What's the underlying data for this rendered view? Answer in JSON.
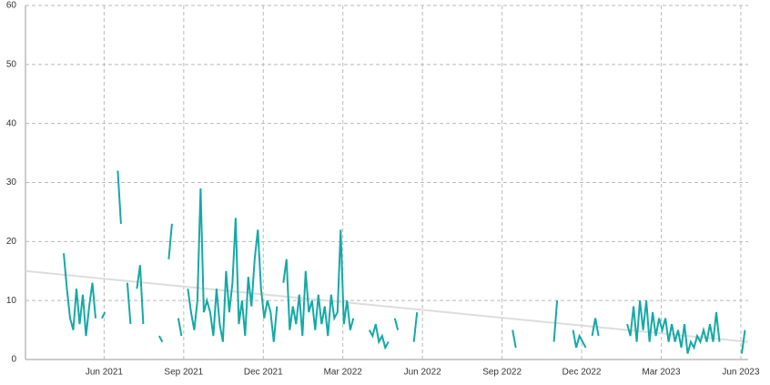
{
  "chart_data": {
    "type": "line",
    "xlim": [
      2021.17,
      2023.44
    ],
    "ylim": [
      0,
      60
    ],
    "yticks": [
      0,
      10,
      20,
      30,
      40,
      50,
      60
    ],
    "xticks": [
      {
        "value": 2021.417,
        "label": "Jun 2021"
      },
      {
        "value": 2021.667,
        "label": "Sep 2021"
      },
      {
        "value": 2021.917,
        "label": "Dec 2021"
      },
      {
        "value": 2022.167,
        "label": "Mar 2022"
      },
      {
        "value": 2022.417,
        "label": "Jun 2022"
      },
      {
        "value": 2022.667,
        "label": "Sep 2022"
      },
      {
        "value": 2022.917,
        "label": "Dec 2022"
      },
      {
        "value": 2023.167,
        "label": "Mar 2023"
      },
      {
        "value": 2023.417,
        "label": "Jun 2023"
      }
    ],
    "grid": true,
    "series": [
      {
        "color": "#dddddd",
        "x": [
          2021.17,
          2023.44
        ],
        "values": [
          15,
          3
        ]
      },
      {
        "color": "#14a9a6",
        "x": [
          2021.29,
          2021.3,
          2021.31,
          2021.32,
          2021.33,
          2021.34,
          2021.35,
          2021.36,
          2021.37,
          2021.38,
          2021.39,
          2021.4,
          2021.41,
          2021.42,
          2021.43,
          2021.46,
          2021.47,
          2021.48,
          2021.49,
          2021.5,
          2021.51,
          2021.52,
          2021.53,
          2021.54,
          2021.55,
          2021.59,
          2021.6,
          2021.61,
          2021.62,
          2021.63,
          2021.64,
          2021.65,
          2021.66,
          2021.67,
          2021.68,
          2021.69,
          2021.7,
          2021.71,
          2021.72,
          2021.73,
          2021.74,
          2021.75,
          2021.76,
          2021.77,
          2021.78,
          2021.79,
          2021.8,
          2021.81,
          2021.82,
          2021.83,
          2021.84,
          2021.85,
          2021.86,
          2021.87,
          2021.88,
          2021.89,
          2021.9,
          2021.91,
          2021.92,
          2021.93,
          2021.94,
          2021.95,
          2021.96,
          2021.97,
          2021.98,
          2021.99,
          2022.0,
          2022.01,
          2022.02,
          2022.03,
          2022.04,
          2022.05,
          2022.06,
          2022.07,
          2022.08,
          2022.09,
          2022.1,
          2022.11,
          2022.12,
          2022.13,
          2022.14,
          2022.15,
          2022.16,
          2022.17,
          2022.18,
          2022.19,
          2022.2,
          2022.21,
          2022.25,
          2022.26,
          2022.27,
          2022.28,
          2022.29,
          2022.3,
          2022.31,
          2022.32,
          2022.33,
          2022.34,
          2022.35,
          2022.39,
          2022.4,
          2022.41,
          2022.7,
          2022.71,
          2022.72,
          2022.83,
          2022.84,
          2022.85,
          2022.89,
          2022.9,
          2022.91,
          2022.92,
          2022.93,
          2022.94,
          2022.95,
          2022.96,
          2022.97,
          2022.98,
          2023.06,
          2023.07,
          2023.08,
          2023.09,
          2023.1,
          2023.11,
          2023.12,
          2023.13,
          2023.14,
          2023.15,
          2023.16,
          2023.17,
          2023.18,
          2023.19,
          2023.2,
          2023.21,
          2023.22,
          2023.23,
          2023.24,
          2023.25,
          2023.26,
          2023.27,
          2023.28,
          2023.29,
          2023.3,
          2023.31,
          2023.32,
          2023.33,
          2023.34,
          2023.35,
          2023.36,
          2023.42,
          2023.43
        ],
        "values": [
          18,
          12,
          7,
          5,
          12,
          6,
          11,
          4,
          9,
          13,
          7,
          null,
          7,
          8,
          null,
          32,
          23,
          null,
          13,
          6,
          null,
          12,
          16,
          6,
          null,
          4,
          3,
          null,
          17,
          23,
          null,
          7,
          4,
          null,
          12,
          8,
          5,
          10,
          29,
          8,
          10,
          8,
          4,
          12,
          6,
          3,
          15,
          8,
          13,
          24,
          6,
          10,
          4,
          14,
          9,
          17,
          22,
          12,
          7,
          10,
          8,
          3,
          9,
          null,
          13,
          17,
          5,
          9,
          6,
          11,
          4,
          15,
          8,
          10,
          5,
          11,
          6,
          9,
          4,
          11,
          7,
          8,
          22,
          6,
          10,
          5,
          7,
          null,
          5,
          4,
          6,
          3,
          4,
          2,
          3,
          null,
          7,
          5,
          null,
          3,
          8,
          null,
          5,
          2,
          null,
          3,
          10,
          null,
          5,
          2,
          4,
          3,
          2,
          null,
          4,
          7,
          4,
          null,
          6,
          4,
          9,
          3,
          10,
          5,
          10,
          3,
          8,
          4,
          7,
          5,
          7,
          3,
          6,
          3,
          5,
          2,
          6,
          1,
          3,
          2,
          4,
          3,
          5,
          3,
          6,
          3,
          8,
          3,
          null,
          1,
          5
        ]
      }
    ]
  }
}
